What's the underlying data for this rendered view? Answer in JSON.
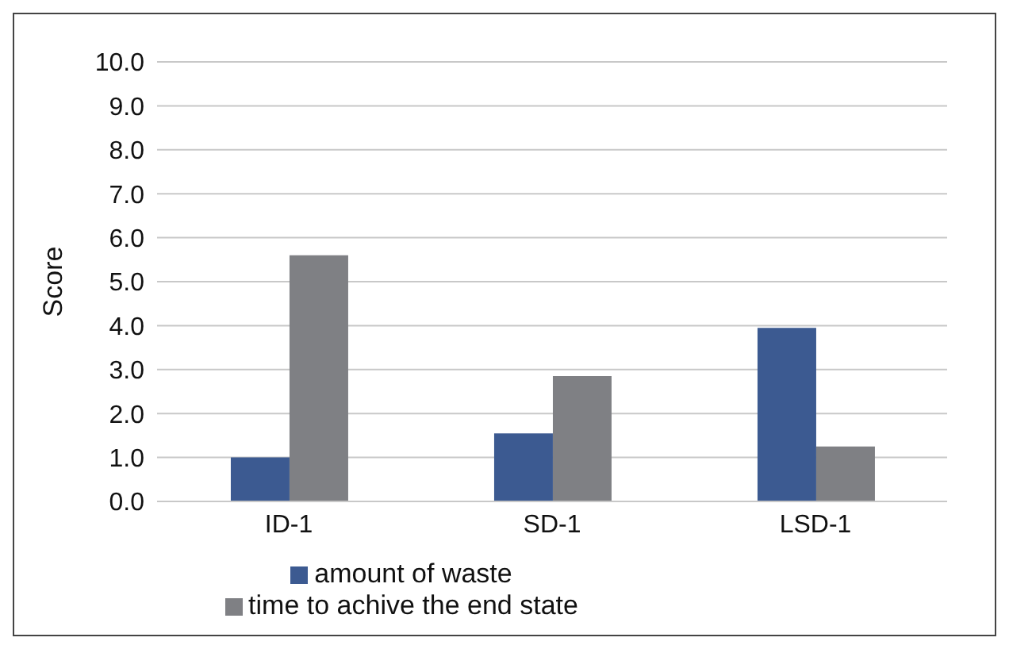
{
  "chart_data": {
    "type": "bar",
    "ylabel": "Score",
    "categories": [
      "ID-1",
      "SD-1",
      "LSD-1"
    ],
    "series": [
      {
        "name": "amount of waste",
        "color": "#3c5a91",
        "values": [
          1.0,
          1.55,
          3.95
        ]
      },
      {
        "name": "time to achive the end state",
        "color": "#7f8084",
        "values": [
          5.6,
          2.85,
          1.25
        ]
      }
    ],
    "ylim": [
      0,
      10
    ],
    "yticks": [
      {
        "value": 0,
        "label": "0.0"
      },
      {
        "value": 1,
        "label": "1.0"
      },
      {
        "value": 2,
        "label": "2.0"
      },
      {
        "value": 3,
        "label": "3.0"
      },
      {
        "value": 4,
        "label": "4.0"
      },
      {
        "value": 5,
        "label": "5.0"
      },
      {
        "value": 6,
        "label": "6.0"
      },
      {
        "value": 7,
        "label": "7.0"
      },
      {
        "value": 8,
        "label": "8.0"
      },
      {
        "value": 9,
        "label": "9.0"
      },
      {
        "value": 10,
        "label": "10.0"
      }
    ],
    "grid": "y",
    "legend": "bottom"
  }
}
